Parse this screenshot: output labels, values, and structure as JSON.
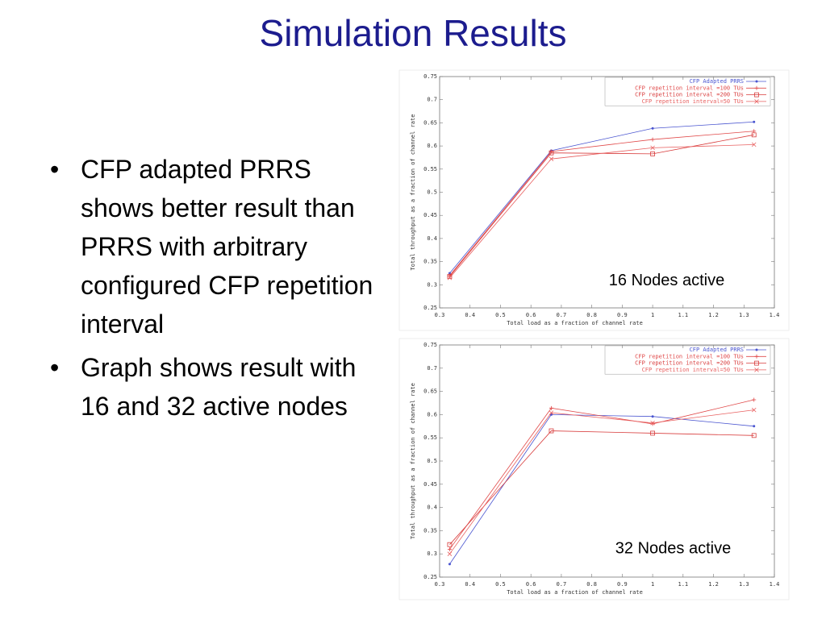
{
  "title": "Simulation Results",
  "bullets": [
    "CFP adapted PRRS shows better result than PRRS with arbitrary configured CFP repetition interval",
    "Graph shows result with 16 and 32 active nodes"
  ],
  "chart_data": [
    {
      "type": "line",
      "annotation": "16 Nodes active",
      "x_label": "Total load as a fraction of channel rate",
      "y_label": "Total throughput as a fraction of channel rate",
      "x": [
        0.333,
        0.667,
        1,
        1.333
      ],
      "series": [
        {
          "name": "CFP Adapted PRRS",
          "color": "#4a55d0",
          "marker": "dot",
          "values": [
            0.325,
            0.59,
            0.638,
            0.652
          ]
        },
        {
          "name": "CFP repetition interval =100 TUs",
          "color": "#e04848",
          "marker": "plus",
          "values": [
            0.32,
            0.588,
            0.614,
            0.632
          ]
        },
        {
          "name": "CFP repetition interval =200 TUs",
          "color": "#d83c3c",
          "marker": "square",
          "values": [
            0.318,
            0.585,
            0.583,
            0.624
          ]
        },
        {
          "name": "CFP repetition interval=50 TUs",
          "color": "#e86060",
          "marker": "cross",
          "values": [
            0.315,
            0.572,
            0.596,
            0.603
          ]
        }
      ],
      "xlim": [
        0.3,
        1.4
      ],
      "xticks": [
        0.3,
        0.4,
        0.5,
        0.6,
        0.7,
        0.8,
        0.9,
        1,
        1.1,
        1.2,
        1.3,
        1.4
      ],
      "ylim": [
        0.25,
        0.75
      ],
      "yticks": [
        0.25,
        0.3,
        0.35,
        0.4,
        0.45,
        0.5,
        0.55,
        0.6,
        0.65,
        0.7,
        0.75
      ],
      "legend": "upper right"
    },
    {
      "type": "line",
      "annotation": "32 Nodes active",
      "x_label": "Total load as a fraction of channel rate",
      "y_label": "Total throughput as a fraction of channel rate",
      "x": [
        0.333,
        0.667,
        1,
        1.333
      ],
      "series": [
        {
          "name": "CFP Adapted PRRS",
          "color": "#4a55d0",
          "marker": "dot",
          "values": [
            0.278,
            0.6,
            0.596,
            0.575
          ]
        },
        {
          "name": "CFP repetition interval =100 TUs",
          "color": "#e04848",
          "marker": "plus",
          "values": [
            0.31,
            0.614,
            0.58,
            0.632
          ]
        },
        {
          "name": "CFP repetition interval =200 TUs",
          "color": "#d83c3c",
          "marker": "square",
          "values": [
            0.32,
            0.565,
            0.56,
            0.555
          ]
        },
        {
          "name": "CFP repetition interval=50 TUs",
          "color": "#e86060",
          "marker": "cross",
          "values": [
            0.3,
            0.604,
            0.582,
            0.61
          ]
        }
      ],
      "xlim": [
        0.3,
        1.4
      ],
      "xticks": [
        0.3,
        0.4,
        0.5,
        0.6,
        0.7,
        0.8,
        0.9,
        1,
        1.1,
        1.2,
        1.3,
        1.4
      ],
      "ylim": [
        0.25,
        0.75
      ],
      "yticks": [
        0.25,
        0.3,
        0.35,
        0.4,
        0.45,
        0.5,
        0.55,
        0.6,
        0.65,
        0.7,
        0.75
      ],
      "legend": "upper right"
    }
  ]
}
